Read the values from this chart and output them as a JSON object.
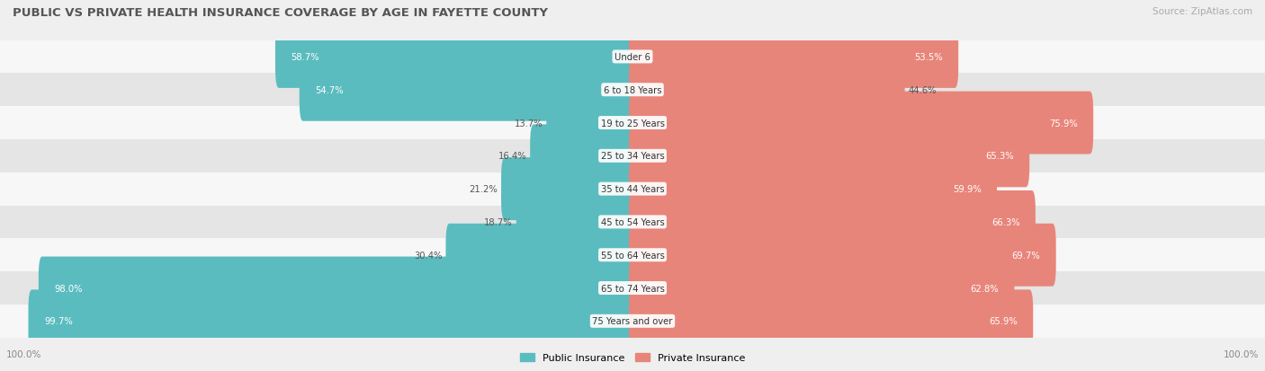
{
  "title": "PUBLIC VS PRIVATE HEALTH INSURANCE COVERAGE BY AGE IN FAYETTE COUNTY",
  "source": "Source: ZipAtlas.com",
  "categories": [
    "Under 6",
    "6 to 18 Years",
    "19 to 25 Years",
    "25 to 34 Years",
    "35 to 44 Years",
    "45 to 54 Years",
    "55 to 64 Years",
    "65 to 74 Years",
    "75 Years and over"
  ],
  "public_values": [
    58.7,
    54.7,
    13.7,
    16.4,
    21.2,
    18.7,
    30.4,
    98.0,
    99.7
  ],
  "private_values": [
    53.5,
    44.6,
    75.9,
    65.3,
    59.9,
    66.3,
    69.7,
    62.8,
    65.9
  ],
  "public_color": "#5bbcbf",
  "private_color": "#e8857a",
  "bg_color": "#efefef",
  "row_bg_light": "#f7f7f7",
  "row_bg_dark": "#e5e5e5",
  "title_color": "#555555",
  "source_color": "#aaaaaa",
  "label_color_dark": "#555555",
  "label_color_white": "#ffffff",
  "max_value": 100.0,
  "legend_public": "Public Insurance",
  "legend_private": "Private Insurance"
}
